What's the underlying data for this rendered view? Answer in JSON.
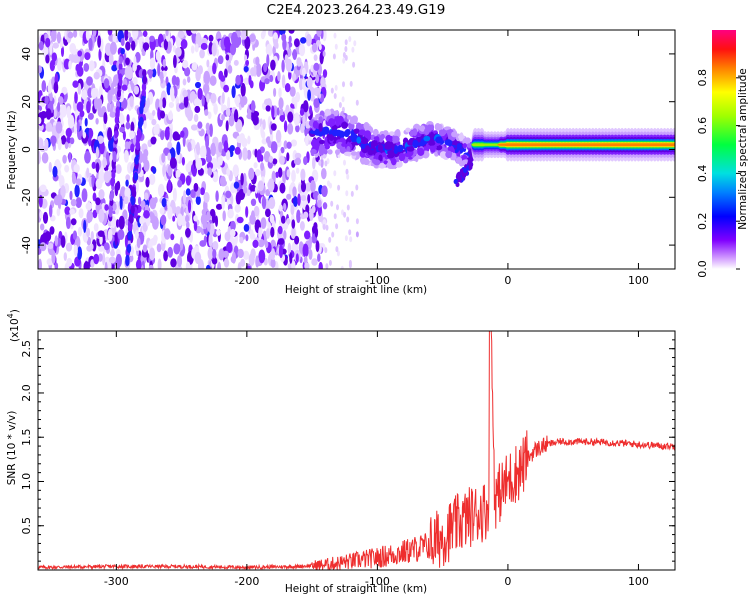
{
  "title": "C2E4.2023.264.23.49.G19",
  "chart_data": [
    {
      "type": "heatmap",
      "xlabel": "Height of straight line (km)",
      "ylabel": "Frequency (Hz)",
      "xlim": [
        -360,
        128
      ],
      "ylim": [
        -50,
        50
      ],
      "xticks": [
        -300,
        -200,
        -100,
        0,
        100
      ],
      "yticks": [
        -40,
        -20,
        0,
        20,
        40
      ],
      "grid": false,
      "colorbar": {
        "label": "Normalized spectral amplitude",
        "range": [
          0,
          1
        ],
        "ticks": [
          "0.0",
          "0.2",
          "0.4",
          "0.6",
          "0.8"
        ],
        "colormap": "rainbow (white → purple → blue → cyan → green → yellow → red → magenta)"
      },
      "features": [
        {
          "x_range": [
            -360,
            -140
          ],
          "description": "scattered noise across all frequencies"
        },
        {
          "x_range": [
            -300,
            -280
          ],
          "description": "diagonal streak"
        },
        {
          "x_range": [
            -150,
            -25
          ],
          "frequency_approx": [
            -15,
            15
          ],
          "description": "converging band"
        },
        {
          "x_range": [
            -25,
            128
          ],
          "frequency_approx": 2,
          "description": "narrow band, amplitude ~0.9"
        }
      ]
    },
    {
      "type": "line",
      "xlabel": "Height of straight line (km)",
      "ylabel": "SNR (10 * v/v)",
      "multiplier_label": "(x10",
      "multiplier_exp": "4",
      "multiplier_close": ")",
      "xlim": [
        -360,
        128
      ],
      "ylim": [
        0,
        2.7
      ],
      "xticks": [
        -300,
        -200,
        -100,
        0,
        100
      ],
      "yticks": [
        "0.5",
        "1.0",
        "1.5",
        "2.0",
        "2.5"
      ],
      "grid": false,
      "series": [
        {
          "color": "#ee2e2e",
          "x": [
            -360,
            -300,
            -250,
            -200,
            -160,
            -140,
            -120,
            -100,
            -80,
            -60,
            -50,
            -40,
            -30,
            -20,
            -15,
            -13,
            -10,
            -5,
            0,
            5,
            10,
            15,
            20,
            30,
            40,
            60,
            80,
            100,
            110,
            120,
            128
          ],
          "y": [
            0.03,
            0.04,
            0.04,
            0.03,
            0.04,
            0.06,
            0.1,
            0.14,
            0.2,
            0.28,
            0.38,
            0.5,
            0.6,
            0.66,
            0.7,
            2.7,
            0.8,
            0.9,
            1.0,
            1.08,
            1.15,
            1.25,
            1.35,
            1.42,
            1.45,
            1.45,
            1.44,
            1.42,
            1.41,
            1.4,
            1.4
          ]
        }
      ]
    }
  ]
}
